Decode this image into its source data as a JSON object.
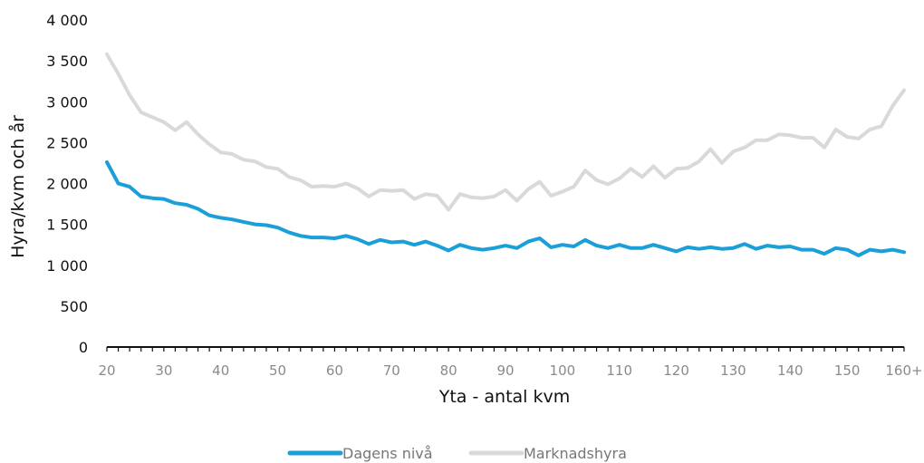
{
  "chart_data": {
    "type": "line",
    "xlabel": "Yta - antal kvm",
    "ylabel": "Hyra/kvm och år",
    "ylim": [
      0,
      4000
    ],
    "xlim": [
      20,
      160
    ],
    "x_ticks": [
      {
        "value": 20,
        "label": "20"
      },
      {
        "value": 30,
        "label": "30"
      },
      {
        "value": 40,
        "label": "40"
      },
      {
        "value": 50,
        "label": "50"
      },
      {
        "value": 60,
        "label": "60"
      },
      {
        "value": 70,
        "label": "70"
      },
      {
        "value": 80,
        "label": "80"
      },
      {
        "value": 90,
        "label": "90"
      },
      {
        "value": 100,
        "label": "100"
      },
      {
        "value": 110,
        "label": "110"
      },
      {
        "value": 120,
        "label": "120"
      },
      {
        "value": 130,
        "label": "130"
      },
      {
        "value": 140,
        "label": "140"
      },
      {
        "value": 150,
        "label": "150"
      },
      {
        "value": 160,
        "label": "160+"
      }
    ],
    "y_ticks": [
      {
        "value": 0,
        "label": "0"
      },
      {
        "value": 500,
        "label": "500"
      },
      {
        "value": 1000,
        "label": "1 000"
      },
      {
        "value": 1500,
        "label": "1 500"
      },
      {
        "value": 2000,
        "label": "2 000"
      },
      {
        "value": 2500,
        "label": "2 500"
      },
      {
        "value": 3000,
        "label": "3 000"
      },
      {
        "value": 3500,
        "label": "3 500"
      },
      {
        "value": 4000,
        "label": "4 000"
      }
    ],
    "grid": false,
    "legend_position": "bottom-center",
    "x": [
      20,
      22,
      24,
      26,
      28,
      30,
      32,
      34,
      36,
      38,
      40,
      42,
      44,
      46,
      48,
      50,
      52,
      54,
      56,
      58,
      60,
      62,
      64,
      66,
      68,
      70,
      72,
      74,
      76,
      78,
      80,
      82,
      84,
      86,
      88,
      90,
      92,
      94,
      96,
      98,
      100,
      102,
      104,
      106,
      108,
      110,
      112,
      114,
      116,
      118,
      120,
      122,
      124,
      126,
      128,
      130,
      132,
      134,
      136,
      138,
      140,
      142,
      144,
      146,
      148,
      150,
      152,
      154,
      156,
      158,
      160
    ],
    "series": [
      {
        "name": "Dagens nivå",
        "color": "#1a9fd9",
        "values": [
          2260,
          2000,
          1960,
          1840,
          1820,
          1810,
          1760,
          1740,
          1690,
          1610,
          1580,
          1560,
          1530,
          1500,
          1490,
          1460,
          1400,
          1360,
          1340,
          1340,
          1330,
          1360,
          1320,
          1260,
          1310,
          1280,
          1290,
          1250,
          1290,
          1240,
          1180,
          1250,
          1210,
          1190,
          1210,
          1240,
          1210,
          1290,
          1330,
          1220,
          1250,
          1230,
          1310,
          1240,
          1210,
          1250,
          1210,
          1210,
          1250,
          1210,
          1170,
          1220,
          1200,
          1220,
          1200,
          1210,
          1260,
          1200,
          1240,
          1220,
          1230,
          1190,
          1190,
          1140,
          1210,
          1190,
          1120,
          1190,
          1170,
          1190,
          1160
        ]
      },
      {
        "name": "Marknadshyra",
        "color": "#d9d9d9",
        "values": [
          3580,
          3340,
          3080,
          2870,
          2810,
          2750,
          2650,
          2750,
          2600,
          2480,
          2380,
          2360,
          2290,
          2270,
          2200,
          2180,
          2080,
          2040,
          1960,
          1970,
          1960,
          2000,
          1940,
          1840,
          1920,
          1910,
          1920,
          1810,
          1870,
          1850,
          1680,
          1870,
          1830,
          1820,
          1840,
          1920,
          1790,
          1930,
          2020,
          1850,
          1900,
          1960,
          2160,
          2040,
          1990,
          2060,
          2180,
          2080,
          2210,
          2070,
          2180,
          2190,
          2270,
          2420,
          2250,
          2390,
          2440,
          2530,
          2530,
          2600,
          2590,
          2560,
          2560,
          2440,
          2660,
          2570,
          2550,
          2660,
          2700,
          2950,
          3140
        ]
      }
    ]
  }
}
